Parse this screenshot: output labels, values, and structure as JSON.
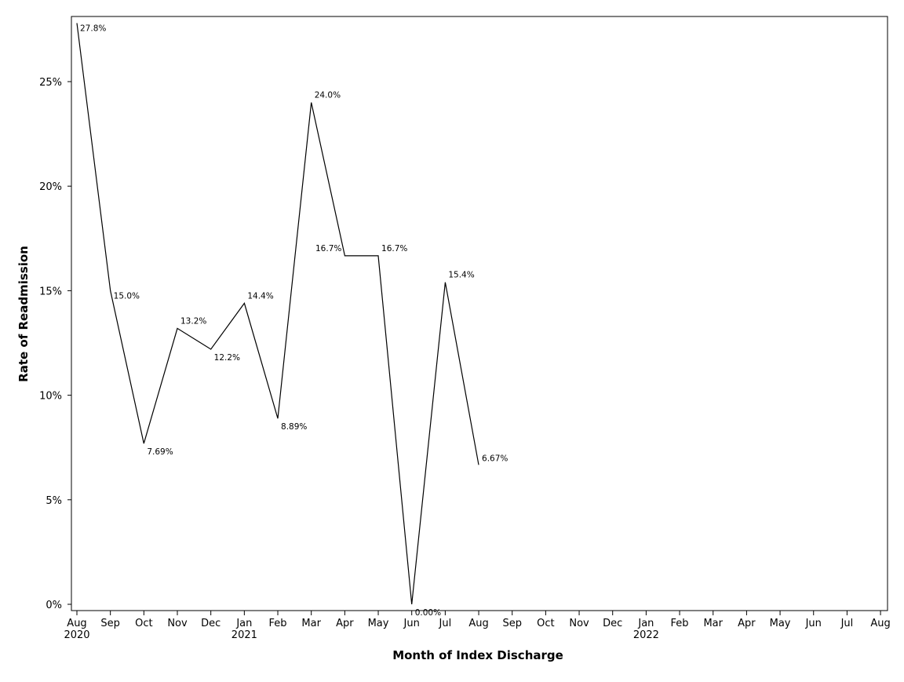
{
  "chart_data": {
    "type": "line",
    "title": "",
    "xlabel": "Month of Index Discharge",
    "ylabel": "Rate of Readmission",
    "ylim": [
      0,
      0.278
    ],
    "y_ticks": [
      0,
      0.05,
      0.1,
      0.15,
      0.2,
      0.25
    ],
    "y_tick_labels": [
      "0%",
      "5%",
      "10%",
      "15%",
      "20%",
      "25%"
    ],
    "x_ticks": [
      {
        "month": "Aug",
        "year": "2020"
      },
      {
        "month": "Sep",
        "year": ""
      },
      {
        "month": "Oct",
        "year": ""
      },
      {
        "month": "Nov",
        "year": ""
      },
      {
        "month": "Dec",
        "year": ""
      },
      {
        "month": "Jan",
        "year": "2021"
      },
      {
        "month": "Feb",
        "year": ""
      },
      {
        "month": "Mar",
        "year": ""
      },
      {
        "month": "Apr",
        "year": ""
      },
      {
        "month": "May",
        "year": ""
      },
      {
        "month": "Jun",
        "year": ""
      },
      {
        "month": "Jul",
        "year": ""
      },
      {
        "month": "Aug",
        "year": ""
      },
      {
        "month": "Sep",
        "year": ""
      },
      {
        "month": "Oct",
        "year": ""
      },
      {
        "month": "Nov",
        "year": ""
      },
      {
        "month": "Dec",
        "year": ""
      },
      {
        "month": "Jan",
        "year": "2022"
      },
      {
        "month": "Feb",
        "year": ""
      },
      {
        "month": "Mar",
        "year": ""
      },
      {
        "month": "Apr",
        "year": ""
      },
      {
        "month": "May",
        "year": ""
      },
      {
        "month": "Jun",
        "year": ""
      },
      {
        "month": "Jul",
        "year": ""
      },
      {
        "month": "Aug",
        "year": ""
      }
    ],
    "series": [
      {
        "points": [
          {
            "x": "2020-08",
            "y": 0.278,
            "label": "27.8%"
          },
          {
            "x": "2020-09",
            "y": 0.15,
            "label": "15.0%"
          },
          {
            "x": "2020-10",
            "y": 0.0769,
            "label": "7.69%"
          },
          {
            "x": "2020-11",
            "y": 0.132,
            "label": "13.2%"
          },
          {
            "x": "2020-12",
            "y": 0.122,
            "label": "12.2%"
          },
          {
            "x": "2021-01",
            "y": 0.144,
            "label": "14.4%"
          },
          {
            "x": "2021-02",
            "y": 0.0889,
            "label": "8.89%"
          },
          {
            "x": "2021-03",
            "y": 0.24,
            "label": "24.0%"
          },
          {
            "x": "2021-04",
            "y": 0.1667,
            "label": "16.7%"
          },
          {
            "x": "2021-05",
            "y": 0.1667,
            "label": "16.7%"
          },
          {
            "x": "2021-06",
            "y": 0.0,
            "label": "0.00%"
          },
          {
            "x": "2021-07",
            "y": 0.154,
            "label": "15.4%"
          },
          {
            "x": "2021-08",
            "y": 0.0667,
            "label": "6.67%"
          }
        ],
        "color": "#000000"
      }
    ],
    "grid": false,
    "legend": "none"
  }
}
